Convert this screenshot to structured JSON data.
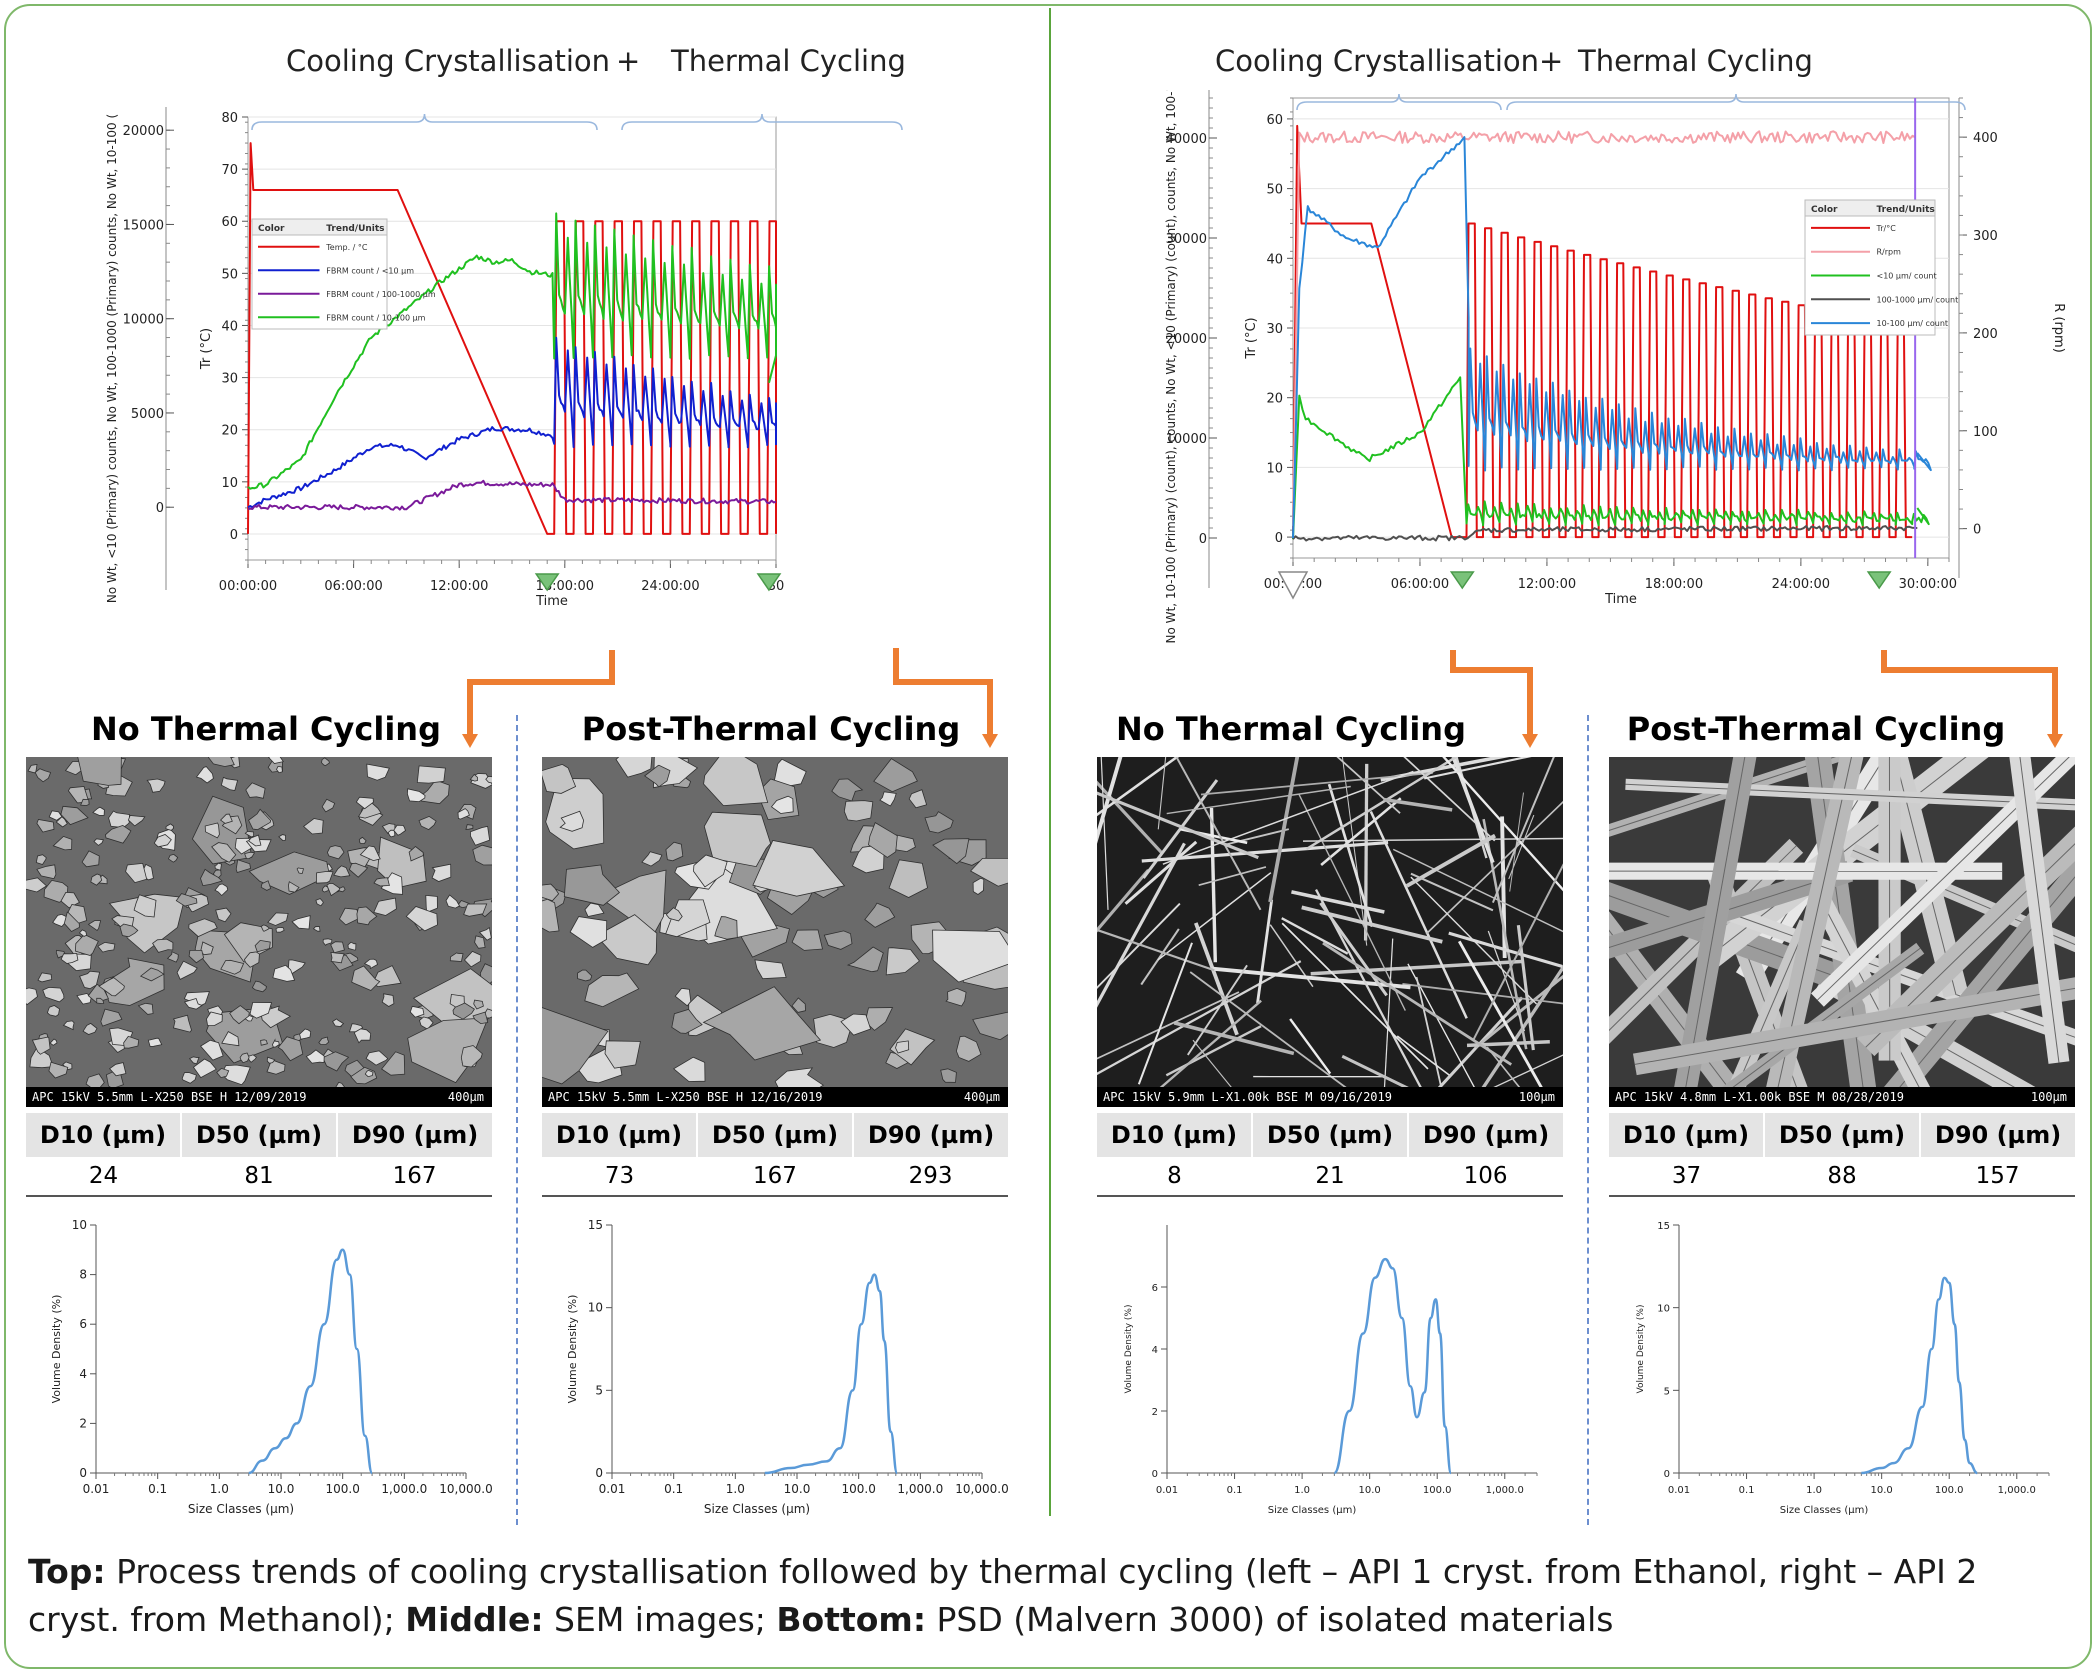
{
  "header": {
    "cooling": "Cooling Crystallisation",
    "plus": "+",
    "thermal": "Thermal Cycling"
  },
  "caption": {
    "top_label": "Top:",
    "top_text": " Process trends of cooling crystallisation followed by thermal cycling (left – API 1 cryst. from Ethanol, right – API 2 cryst. from Methanol); ",
    "middle_label": "Middle:",
    "middle_text": " SEM images; ",
    "bottom_label": "Bottom:",
    "bottom_text": " PSD (Malvern 3000) of isolated materials"
  },
  "table_headers": [
    "D10 (µm)",
    "D50 (µm)",
    "D90 (µm)"
  ],
  "labels": {
    "no_tc": "No Thermal Cycling",
    "post_tc": "Post-Thermal Cycling"
  },
  "colors": {
    "temp": "#e01010",
    "fine": "#20c020",
    "mid": "#1020d0",
    "coarse": "#7a1a9a",
    "blue2": "#2a86d8",
    "pink": "#f4a0a8",
    "psd": "#5a9ad8",
    "arrow": "#ed7d31",
    "marker": "#7ac27a"
  },
  "sem": [
    {
      "info": "APC 15kV 5.5mm L-X250 BSE H 12/09/2019",
      "scale": "400µm"
    },
    {
      "info": "APC 15kV 5.5mm L-X250 BSE H 12/16/2019",
      "scale": "400µm"
    },
    {
      "info": "APC 15kV 5.9mm L-X1.00k BSE M 09/16/2019",
      "scale": "100µm"
    },
    {
      "info": "APC 15kV 4.8mm L-X1.00k BSE M 08/28/2019",
      "scale": "100µm"
    }
  ],
  "chart_data": [
    {
      "type": "line",
      "id": "trend-left",
      "xlabel": "Time",
      "ylabel": "Tr (°C)",
      "y2label": "No Wt, <10 (Primary) counts, No Wt, 100-1000 (Primary) counts, No Wt, 10-100 (",
      "x_ticks": [
        "00:00:00",
        "06:00:00",
        "12:00:00",
        "18:00:00",
        "24:00:00",
        "30"
      ],
      "y_ticks": [
        "0",
        "10",
        "20",
        "30",
        "40",
        "50",
        "60",
        "70",
        "80"
      ],
      "y2_ticks": [
        "0",
        "5000",
        "10000",
        "15000",
        "20000"
      ],
      "xlim": [
        0,
        30
      ],
      "ylim": [
        -5,
        80
      ],
      "y2lim": [
        -2800,
        20700
      ],
      "legend": {
        "col1": "Color",
        "col2": "Trend/Units",
        "items": [
          "Temp. / °C",
          "FBRM count / <10 µm",
          "FBRM count / 100-1000 µm",
          "FBRM count / 10-100 µm"
        ]
      },
      "series": [
        {
          "name": "Temp. / °C",
          "color": "#e01010",
          "x": [
            0,
            0.15,
            0.3,
            8.5,
            17,
            17.3
          ],
          "y": [
            0,
            75,
            66,
            66,
            0,
            0
          ],
          "cycles": {
            "start": 17.4,
            "end": 29.6,
            "period": 1.1,
            "min": 0,
            "max": 60
          }
        },
        {
          "name": "FBRM count / <10 µm",
          "color": "#1020d0",
          "x": [
            0,
            1,
            3,
            5,
            7,
            8.5,
            10,
            12,
            14,
            16,
            17.3
          ],
          "y": [
            0,
            400,
            1000,
            2000,
            3200,
            3300,
            2600,
            3600,
            4200,
            4100,
            3800
          ],
          "cycles": {
            "start": 17.4,
            "end": 29.6,
            "period": 1.1,
            "min": 3300,
            "max": 9000,
            "decay": 0.93
          }
        },
        {
          "name": "FBRM count / 100-1000 µm",
          "color": "#7a1a9a",
          "x": [
            0,
            9,
            10,
            12,
            13,
            16,
            17.3,
            18,
            30
          ],
          "y": [
            0,
            0,
            400,
            1200,
            1300,
            1200,
            1200,
            400,
            300
          ]
        },
        {
          "name": "FBRM count / 10-100 µm",
          "color": "#20c020",
          "x": [
            0,
            1,
            3,
            5,
            7,
            9,
            11,
            13,
            14,
            15,
            16,
            17.3
          ],
          "y": [
            1000,
            1200,
            2500,
            6000,
            9000,
            10500,
            12000,
            13300,
            13000,
            13100,
            12500,
            12300
          ],
          "cycles": {
            "start": 17.4,
            "end": 29.6,
            "period": 1.1,
            "min": 8000,
            "max": 15500,
            "decay": 0.96,
            "tail": 6600
          }
        }
      ],
      "markers": [
        17,
        29.6
      ]
    },
    {
      "type": "line",
      "id": "trend-right",
      "xlabel": "Time",
      "ylabel": "Tr (°C)",
      "y2label": "No Wt, 10-100 (Primary) (count), counts, No Wt, <10 (Primary) (count), counts, No Wt, 100-1000 (",
      "y3label": "R (rpm)",
      "x_ticks": [
        "00:00:00",
        "06:00:00",
        "12:00:00",
        "18:00:00",
        "24:00:00",
        "30:00:00"
      ],
      "y_ticks": [
        "0",
        "10",
        "20",
        "30",
        "40",
        "50",
        "60"
      ],
      "y2_ticks": [
        "0",
        "10000",
        "20000",
        "30000",
        "40000"
      ],
      "y3_ticks": [
        "0",
        "100",
        "200",
        "300",
        "400"
      ],
      "xlim": [
        0,
        31
      ],
      "ylim": [
        -3,
        63
      ],
      "y2lim": [
        -2000,
        44000
      ],
      "y3lim": [
        -30,
        440
      ],
      "legend": {
        "col1": "Color",
        "col2": "Trend/Units",
        "items": [
          "Tr/°C",
          "R/rpm",
          "<10 µm/ count",
          "100-1000 µm/ count",
          "10-100 µm/ count"
        ]
      },
      "series": [
        {
          "name": "Tr/°C",
          "color": "#e01010",
          "x": [
            0,
            0.2,
            0.4,
            3.7,
            7.5,
            8.0
          ],
          "y": [
            0,
            59,
            45,
            45,
            0,
            0
          ],
          "cycles": {
            "start": 8.2,
            "end": 28.6,
            "period": 0.78,
            "min": 0,
            "max": 45,
            "decay": 0.985
          }
        },
        {
          "name": "R/rpm",
          "color": "#f4a0a8",
          "x": [
            0,
            0.3,
            29.4
          ],
          "y": [
            0,
            400,
            400
          ]
        },
        {
          "name": "<10 µm/ count",
          "color": "#20c020",
          "x": [
            0,
            0.3,
            0.6,
            3.5,
            6,
            7.9
          ],
          "y": [
            0,
            14000,
            12000,
            7800,
            10500,
            16000
          ],
          "cycles": {
            "start": 8.2,
            "end": 29.5,
            "period": 0.78,
            "min": 1500,
            "max": 3500,
            "decay": 0.97,
            "tail": 3000
          }
        },
        {
          "name": "100-1000 µm/ count",
          "color": "#505050",
          "x": [
            0,
            8,
            9,
            29.5
          ],
          "y": [
            0,
            0,
            800,
            1000
          ]
        },
        {
          "name": "10-100 µm/ count",
          "color": "#2a86d8",
          "x": [
            0,
            0.3,
            0.7,
            2.5,
            4.0,
            6,
            8.1,
            8.3
          ],
          "y": [
            0,
            25000,
            33000,
            30000,
            29000,
            36000,
            40000,
            22000
          ],
          "cycles": {
            "start": 8.3,
            "end": 29.5,
            "period": 0.78,
            "min": 7000,
            "max": 19000,
            "decay": 0.93,
            "tail": 8500
          }
        }
      ],
      "markers": [
        8,
        27.7
      ]
    },
    {
      "type": "line",
      "id": "psd-1",
      "xlabel": "Size Classes (µm)",
      "ylabel": "Volume Density (%)",
      "x_ticks": [
        "0.01",
        "0.1",
        "1.0",
        "10.0",
        "100.0",
        "1,000.0",
        "10,000.0"
      ],
      "y_ticks": [
        "0",
        "2",
        "4",
        "6",
        "8",
        "10"
      ],
      "xscale": "log",
      "xlim": [
        0.01,
        10000
      ],
      "ylim": [
        0,
        10
      ],
      "table": {
        "D10": "24",
        "D50": "81",
        "D90": "167"
      },
      "series": [
        {
          "x": [
            3,
            5,
            8,
            12,
            18,
            30,
            50,
            80,
            100,
            130,
            170,
            230,
            300
          ],
          "y": [
            0,
            0.5,
            1.0,
            1.4,
            2.0,
            3.5,
            6.0,
            8.6,
            9.0,
            8.0,
            5.0,
            1.5,
            0
          ]
        }
      ]
    },
    {
      "type": "line",
      "id": "psd-2",
      "xlabel": "Size Classes (µm)",
      "ylabel": "Volume Density (%)",
      "x_ticks": [
        "0.01",
        "0.1",
        "1.0",
        "10.0",
        "100.0",
        "1,000.0",
        "10,000.0"
      ],
      "y_ticks": [
        "0",
        "5",
        "10",
        "15"
      ],
      "xscale": "log",
      "xlim": [
        0.01,
        10000
      ],
      "ylim": [
        0,
        15
      ],
      "table": {
        "D10": "73",
        "D50": "167",
        "D90": "293"
      },
      "series": [
        {
          "x": [
            3,
            8,
            15,
            30,
            50,
            80,
            110,
            150,
            180,
            220,
            260,
            330,
            420
          ],
          "y": [
            0,
            0.3,
            0.5,
            0.7,
            1.5,
            5.0,
            9.0,
            11.5,
            12.0,
            11.0,
            8.0,
            2.5,
            0
          ]
        }
      ]
    },
    {
      "type": "line",
      "id": "psd-3",
      "xlabel": "Size Classes (µm)",
      "ylabel": "Volume Density (%)",
      "x_ticks": [
        "0.01",
        "0.1",
        "1.0",
        "10.0",
        "100.0",
        "1,000.0"
      ],
      "y_ticks": [
        "0",
        "2",
        "4",
        "6"
      ],
      "xscale": "log",
      "xlim": [
        0.01,
        3000
      ],
      "ylim": [
        0,
        8
      ],
      "table": {
        "D10": "8",
        "D50": "21",
        "D90": "106"
      },
      "series": [
        {
          "x": [
            3,
            5,
            8,
            12,
            17,
            22,
            30,
            40,
            50,
            65,
            80,
            95,
            110,
            130,
            160
          ],
          "y": [
            0,
            2.0,
            4.5,
            6.3,
            6.9,
            6.6,
            5.0,
            2.8,
            1.8,
            2.6,
            5.0,
            5.6,
            4.5,
            1.5,
            0
          ]
        }
      ]
    },
    {
      "type": "line",
      "id": "psd-4",
      "xlabel": "Size Classes (µm)",
      "ylabel": "Volume Density (%)",
      "x_ticks": [
        "0.01",
        "0.1",
        "1.0",
        "10.0",
        "100.0",
        "1,000.0"
      ],
      "y_ticks": [
        "0",
        "5",
        "10",
        "15"
      ],
      "xscale": "log",
      "xlim": [
        0.01,
        3000
      ],
      "ylim": [
        0,
        15
      ],
      "table": {
        "D10": "37",
        "D50": "88",
        "D90": "157"
      },
      "series": [
        {
          "x": [
            5,
            10,
            15,
            25,
            40,
            55,
            70,
            85,
            100,
            120,
            140,
            170,
            200,
            260
          ],
          "y": [
            0,
            0.3,
            0.6,
            1.5,
            4.0,
            7.5,
            10.5,
            11.8,
            11.5,
            9.0,
            5.5,
            2.0,
            0.6,
            0
          ]
        }
      ]
    }
  ]
}
